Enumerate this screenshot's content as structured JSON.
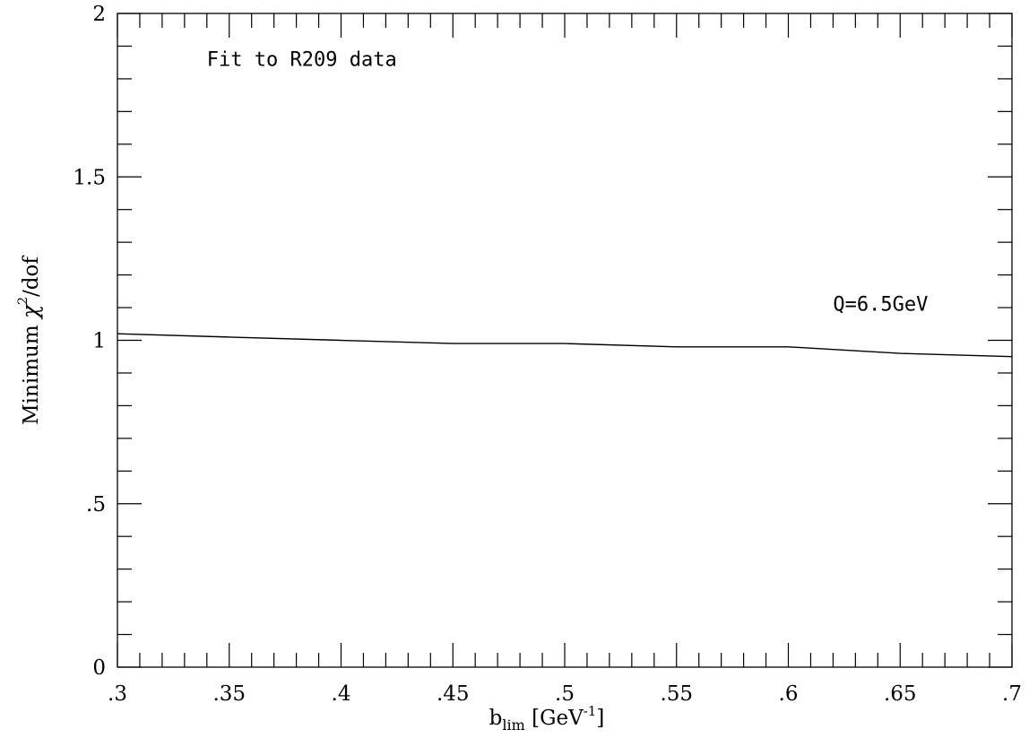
{
  "chart_data": {
    "type": "line",
    "title": "",
    "xlabel": {
      "base": "b",
      "sub": "lim",
      "unit_open": " [GeV",
      "unit_sup": "-1",
      "unit_close": "]"
    },
    "ylabel": {
      "prefix": "Minimum ",
      "symbol": "χ",
      "sup": "2",
      "suffix": "/dof"
    },
    "xlim": [
      0.3,
      0.7
    ],
    "ylim": [
      0,
      2
    ],
    "x_ticks": [
      {
        "value": 0.3,
        "label": ".3"
      },
      {
        "value": 0.35,
        "label": ".35"
      },
      {
        "value": 0.4,
        "label": ".4"
      },
      {
        "value": 0.45,
        "label": ".45"
      },
      {
        "value": 0.5,
        "label": ".5"
      },
      {
        "value": 0.55,
        "label": ".55"
      },
      {
        "value": 0.6,
        "label": ".6"
      },
      {
        "value": 0.65,
        "label": ".65"
      },
      {
        "value": 0.7,
        "label": ".7"
      }
    ],
    "y_ticks": [
      {
        "value": 0,
        "label": "0"
      },
      {
        "value": 0.5,
        "label": ".5"
      },
      {
        "value": 1,
        "label": "1"
      },
      {
        "value": 1.5,
        "label": "1.5"
      },
      {
        "value": 2,
        "label": "2"
      }
    ],
    "x_minor_step": 0.01,
    "y_minor_step": 0.1,
    "grid": false,
    "annotations": [
      {
        "text": "Fit to R209 data",
        "x": 0.34,
        "y": 1.84
      },
      {
        "text": "Q=6.5GeV",
        "x": 0.62,
        "y": 1.09
      }
    ],
    "series": [
      {
        "x": [
          0.3,
          0.35,
          0.4,
          0.45,
          0.5,
          0.55,
          0.6,
          0.65,
          0.7
        ],
        "y": [
          1.02,
          1.01,
          1.0,
          0.99,
          0.99,
          0.98,
          0.98,
          0.96,
          0.95
        ]
      }
    ]
  }
}
